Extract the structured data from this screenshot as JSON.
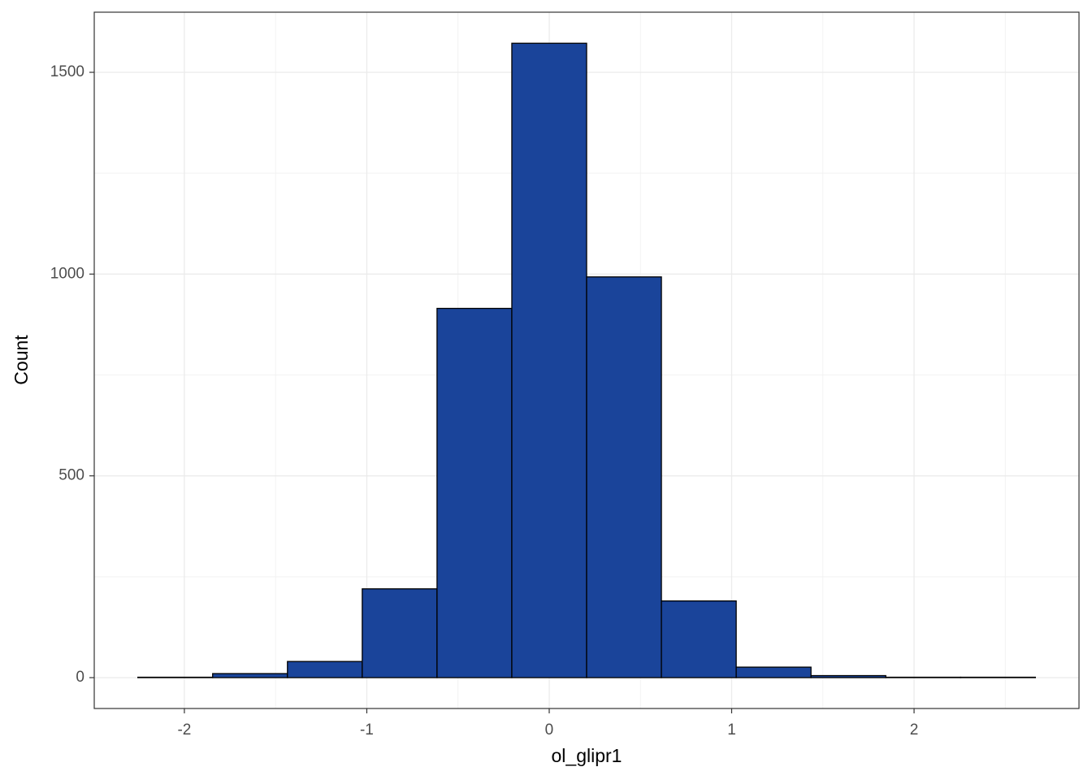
{
  "chart_data": {
    "type": "histogram",
    "xlabel": "ol_glipr1",
    "ylabel": "Count",
    "bins": [
      -2.255,
      -1.845,
      -1.435,
      -1.025,
      -0.615,
      -0.205,
      0.205,
      0.615,
      1.025,
      1.435,
      1.845,
      2.255,
      2.665
    ],
    "values": [
      1,
      10,
      40,
      220,
      915,
      1572,
      993,
      190,
      26,
      5,
      1,
      1
    ],
    "color": "#1a449a",
    "xlim": [
      -2.494,
      2.904
    ],
    "ylim": [
      -76.5,
      1649
    ],
    "xticks": [
      -2,
      -1,
      0,
      1,
      2
    ],
    "yticks": [
      0,
      500,
      1000,
      1500
    ],
    "grid": true
  }
}
